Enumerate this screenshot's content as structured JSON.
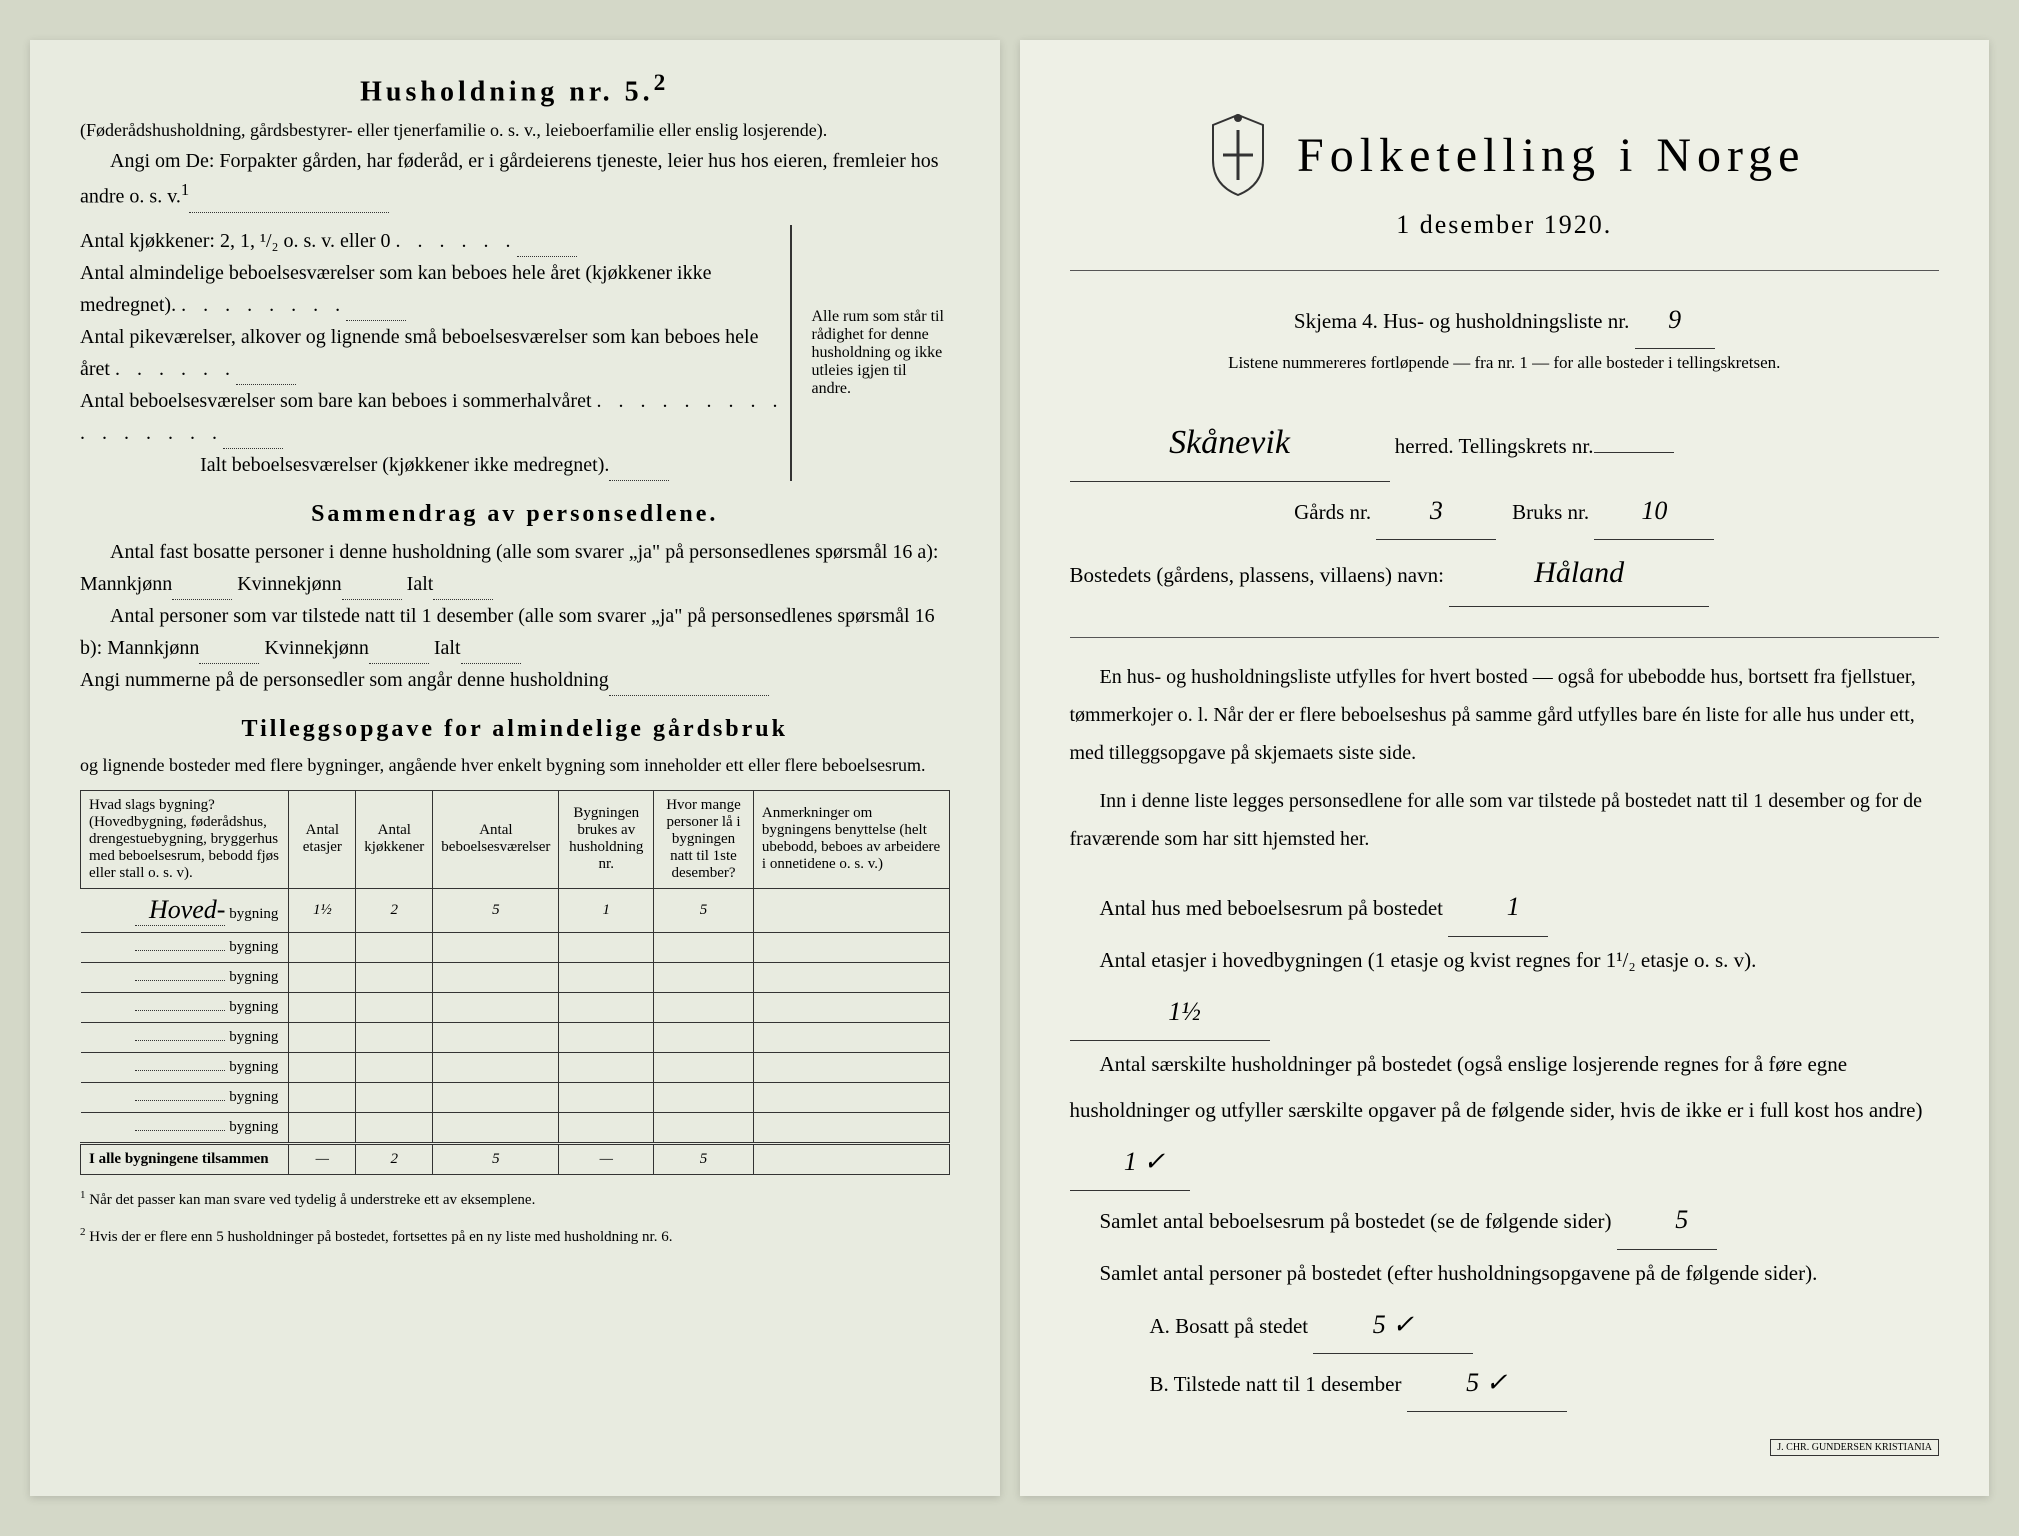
{
  "left": {
    "h5_title": "Husholdning nr. 5.",
    "h5_sup": "2",
    "h5_sub": "(Føderådshusholdning, gårdsbestyrer- eller tjenerfamilie o. s. v., leieboerfamilie eller enslig losjerende).",
    "h5_l1": "Angi om De: Forpakter gården, har føderåd, er i gårdeierens tjeneste, leier hus hos eieren, fremleier hos andre o. s. v.",
    "h5_l1_sup": "1",
    "kitchens_label": "Antal kjøkkener: 2, 1, ¹/₂ o. s. v. eller 0",
    "rooms1": "Antal almindelige beboelsesværelser som kan beboes hele året (kjøkkener ikke medregnet).",
    "rooms2": "Antal pikeværelser, alkover og lignende små beboelsesværelser som kan beboes hele året",
    "rooms3": "Antal beboelsesværelser som bare kan beboes i sommerhalvåret",
    "rooms_total": "Ialt beboelsesværelser (kjøkkener ikke medregnet).",
    "brace_text": "Alle rum som står til rådighet for denne husholdning og ikke utleies igjen til andre.",
    "sammendrag_title": "Sammendrag av personsedlene.",
    "s_l1": "Antal fast bosatte personer i denne husholdning (alle som svarer „ja\" på personsedlenes spørsmål 16 a): Mannkjønn",
    "s_l1_kv": "Kvinnekjønn",
    "s_l1_ialt": "Ialt",
    "s_l2": "Antal personer som var tilstede natt til 1 desember (alle som svarer „ja\" på personsedlenes spørsmål 16 b): Mannkjønn",
    "s_l3": "Angi nummerne på de personsedler som angår denne husholdning",
    "tillegg_title": "Tilleggsopgave for almindelige gårdsbruk",
    "tillegg_sub": "og lignende bosteder med flere bygninger, angående hver enkelt bygning som inneholder ett eller flere beboelsesrum.",
    "table": {
      "headers": [
        "Hvad slags bygning?\n(Hovedbygning, føderådshus, drengestuebygning, bryggerhus med beboelsesrum, bebodd fjøs eller stall o. s. v).",
        "Antal etasjer",
        "Antal kjøkkener",
        "Antal beboelsesværelser",
        "Bygningen brukes av husholdning nr.",
        "Hvor mange personer lå i bygningen natt til 1ste desember?",
        "Anmerkninger om bygningens benyttelse (helt ubebodd, beboes av arbeidere i onnetidene o. s. v.)"
      ],
      "row_suffix": "bygning",
      "rows": [
        {
          "label": "Hoved-",
          "etasjer": "1½",
          "kjokken": "2",
          "beboelse": "5",
          "hushold": "1",
          "personer": "5",
          "anm": ""
        },
        {
          "label": "",
          "etasjer": "",
          "kjokken": "",
          "beboelse": "",
          "hushold": "",
          "personer": "",
          "anm": ""
        },
        {
          "label": "",
          "etasjer": "",
          "kjokken": "",
          "beboelse": "",
          "hushold": "",
          "personer": "",
          "anm": ""
        },
        {
          "label": "",
          "etasjer": "",
          "kjokken": "",
          "beboelse": "",
          "hushold": "",
          "personer": "",
          "anm": ""
        },
        {
          "label": "",
          "etasjer": "",
          "kjokken": "",
          "beboelse": "",
          "hushold": "",
          "personer": "",
          "anm": ""
        },
        {
          "label": "",
          "etasjer": "",
          "kjokken": "",
          "beboelse": "",
          "hushold": "",
          "personer": "",
          "anm": ""
        },
        {
          "label": "",
          "etasjer": "",
          "kjokken": "",
          "beboelse": "",
          "hushold": "",
          "personer": "",
          "anm": ""
        },
        {
          "label": "",
          "etasjer": "",
          "kjokken": "",
          "beboelse": "",
          "hushold": "",
          "personer": "",
          "anm": ""
        }
      ],
      "total_label": "I alle bygningene tilsammen",
      "total": {
        "etasjer": "—",
        "kjokken": "2",
        "beboelse": "5",
        "hushold": "—",
        "personer": "5",
        "anm": ""
      }
    },
    "footnote1": "Når det passer kan man svare ved tydelig å understreke ett av eksemplene.",
    "footnote2": "Hvis der er flere enn 5 husholdninger på bostedet, fortsettes på en ny liste med husholdning nr. 6."
  },
  "right": {
    "title": "Folketelling i Norge",
    "subtitle": "1 desember 1920.",
    "skjema_line": "Skjema 4.  Hus- og husholdningsliste nr.",
    "liste_nr": "9",
    "listene_line": "Listene nummereres fortløpende — fra nr. 1 — for alle bosteder i tellingskretsen.",
    "herred_value": "Skånevik",
    "herred_label": "herred.  Tellingskrets nr.",
    "gards_label": "Gårds nr.",
    "gards_value": "3",
    "bruks_label": "Bruks nr.",
    "bruks_value": "10",
    "bosted_label": "Bostedets (gårdens, plassens, villaens) navn:",
    "bosted_value": "Håland",
    "para1": "En hus- og husholdningsliste utfylles for hvert bosted — også for ubebodde hus, bortsett fra fjellstuer, tømmerkojer o. l.  Når der er flere beboelseshus på samme gård utfylles bare én liste for alle hus under ett, med tilleggsopgave på skjemaets siste side.",
    "para2": "Inn i denne liste legges personsedlene for alle som var tilstede på bostedet natt til 1 desember og for de fraværende som har sitt hjemsted her.",
    "f1_label": "Antal hus med beboelsesrum på bostedet",
    "f1_value": "1",
    "f2_label": "Antal etasjer i hovedbygningen (1 etasje og kvist regnes for 1¹/₂ etasje o. s. v).",
    "f2_value": "1½",
    "f3_label": "Antal særskilte husholdninger på bostedet (også enslige losjerende regnes for å føre egne husholdninger og utfyller særskilte opgaver på de følgende sider, hvis de ikke er i full kost hos andre)",
    "f3_value": "1 ✓",
    "f4_label": "Samlet antal beboelsesrum på bostedet (se de følgende sider)",
    "f4_value": "5",
    "f5_label": "Samlet antal personer på bostedet (efter husholdningsopgavene på de følgende sider).",
    "fA_label": "A.  Bosatt på stedet",
    "fA_value": "5  ✓",
    "fB_label": "B.  Tilstede natt til 1 desember",
    "fB_value": "5  ✓",
    "stamp": "J. CHR. GUNDERSEN\nKRISTIANIA"
  },
  "colors": {
    "paper": "#e8ebe0",
    "paper_right": "#eef0e6",
    "bg": "#d4d8c8",
    "ink": "#2a2a28",
    "handwriting": "#3b3b38"
  }
}
